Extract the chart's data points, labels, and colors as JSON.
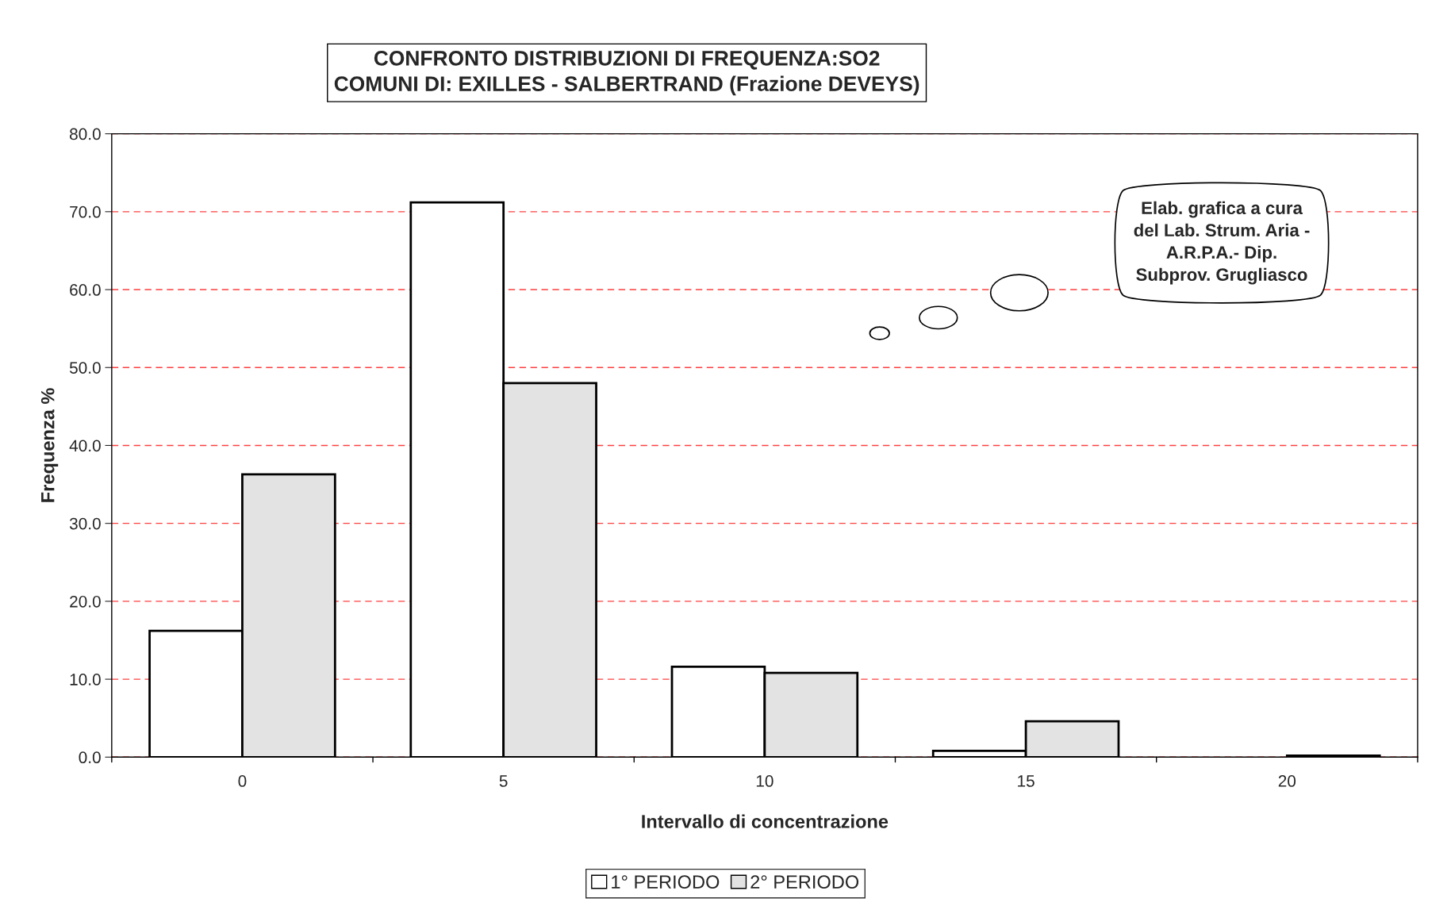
{
  "chart_data": {
    "type": "bar",
    "title": "CONFRONTO DISTRIBUZIONI DI FREQUENZA:SO2\nCOMUNI DI: EXILLES - SALBERTRAND (Frazione DEVEYS)",
    "xlabel": "Intervallo di concentrazione",
    "ylabel": "Frequenza %",
    "categories": [
      "0",
      "5",
      "10",
      "15",
      "20"
    ],
    "series": [
      {
        "name": "1° PERIODO",
        "color": "#ffffff",
        "values": [
          16.2,
          71.2,
          11.6,
          0.8,
          null
        ]
      },
      {
        "name": "2° PERIODO",
        "color": "#e3e3e3",
        "values": [
          36.3,
          48.0,
          10.8,
          4.6,
          0.2
        ]
      }
    ],
    "ylim": [
      0,
      80
    ],
    "yticks": [
      {
        "value": 0,
        "label": "0.0"
      },
      {
        "value": 10,
        "label": "10.0"
      },
      {
        "value": 20,
        "label": "20.0"
      },
      {
        "value": 30,
        "label": "30.0"
      },
      {
        "value": 40,
        "label": "40.0"
      },
      {
        "value": 50,
        "label": "50.0"
      },
      {
        "value": 60,
        "label": "60.0"
      },
      {
        "value": 70,
        "label": "70.0"
      },
      {
        "value": 80,
        "label": "80.0"
      }
    ],
    "grid": "y",
    "legend": "bottom",
    "annotations": [
      "Elab. grafica a cura\ndel Lab. Strum. Aria -\nA.R.P.A.- Dip.\nSubprov. Grugliasco"
    ]
  }
}
